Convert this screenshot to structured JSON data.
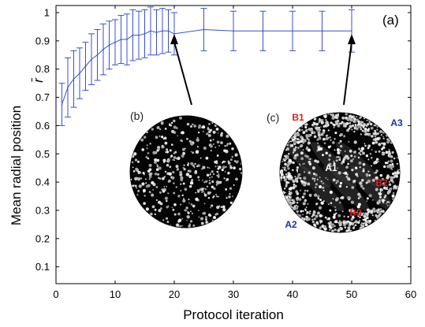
{
  "chart_data": {
    "type": "line",
    "panel_label": "(a)",
    "xlabel": "Protocol iteration",
    "ylabel": "Mean radial position",
    "ysymbol": "r̄",
    "xlim": [
      0,
      60
    ],
    "ylim": [
      0.0,
      1.0
    ],
    "xticks": [
      "0",
      "10",
      "20",
      "30",
      "40",
      "50",
      "60"
    ],
    "yticks": [
      "0.1",
      "0.2",
      "0.3",
      "0.4",
      "0.5",
      "0.6",
      "0.7",
      "0.8",
      "0.9",
      "1"
    ],
    "grid": false,
    "series": [
      {
        "color": "#3a4fd0",
        "x": [
          1,
          2,
          3,
          4,
          5,
          6,
          7,
          8,
          9,
          10,
          11,
          12,
          13,
          14,
          15,
          16,
          17,
          18,
          19,
          20,
          25,
          30,
          35,
          40,
          45,
          50
        ],
        "y": [
          0.675,
          0.735,
          0.765,
          0.785,
          0.81,
          0.835,
          0.85,
          0.87,
          0.885,
          0.895,
          0.905,
          0.905,
          0.92,
          0.92,
          0.925,
          0.935,
          0.93,
          0.935,
          0.935,
          0.925,
          0.94,
          0.935,
          0.935,
          0.935,
          0.935,
          0.935
        ],
        "err": [
          0.075,
          0.105,
          0.1,
          0.09,
          0.085,
          0.09,
          0.09,
          0.09,
          0.085,
          0.08,
          0.085,
          0.09,
          0.09,
          0.085,
          0.085,
          0.085,
          0.08,
          0.08,
          0.075,
          0.075,
          0.075,
          0.07,
          0.07,
          0.07,
          0.07,
          0.075
        ]
      }
    ],
    "insets": [
      {
        "label": "(b)",
        "points_to_x": 20,
        "region_labels": []
      },
      {
        "label": "(c)",
        "points_to_x": 50,
        "region_labels": [
          {
            "text": "B1",
            "color": "#e02020"
          },
          {
            "text": "A3",
            "color": "#1a2fb0"
          },
          {
            "text": "A1",
            "color": "#ffffff"
          },
          {
            "text": "B2",
            "color": "#e02020"
          },
          {
            "text": "B3",
            "color": "#e02020"
          },
          {
            "text": "A2",
            "color": "#1a2fb0"
          }
        ]
      }
    ]
  }
}
